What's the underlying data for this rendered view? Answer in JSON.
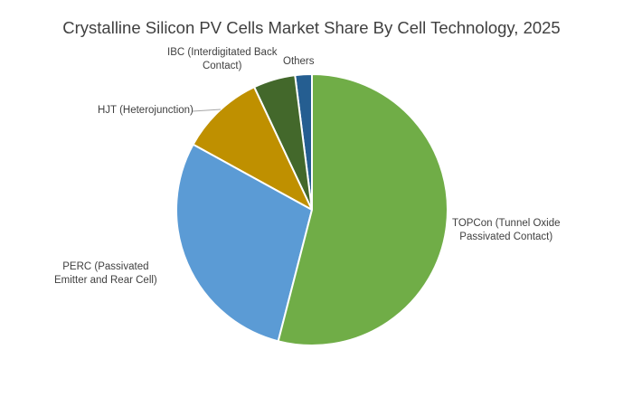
{
  "chart_data": {
    "type": "pie",
    "title": "Crystalline Silicon PV Cells Market Share By Cell Technology, 2025",
    "unit": "percent (estimated)",
    "slices": [
      {
        "label": "TOPCon (Tunnel Oxide Passivated Contact)",
        "line1": "TOPCon (Tunnel Oxide",
        "line2": "Passivated Contact)",
        "value": 54,
        "color": "#70AD47"
      },
      {
        "label": "PERC (Passivated Emitter and Rear Cell)",
        "line1": "PERC (Passivated",
        "line2": "Emitter and Rear Cell)",
        "value": 29,
        "color": "#5B9BD5"
      },
      {
        "label": "HJT (Heterojunction)",
        "line1": "HJT (Heterojunction)",
        "line2": "",
        "value": 10,
        "color": "#BF9000"
      },
      {
        "label": "IBC (Interdigitated Back Contact)",
        "line1": "IBC (Interdigitated Back",
        "line2": "Contact)",
        "value": 5,
        "color": "#43682B"
      },
      {
        "label": "Others",
        "line1": "Others",
        "line2": "",
        "value": 2,
        "color": "#255E91"
      }
    ],
    "start_angle": "12 o'clock",
    "direction": "clockwise",
    "legend": "none (data labels outside)"
  }
}
